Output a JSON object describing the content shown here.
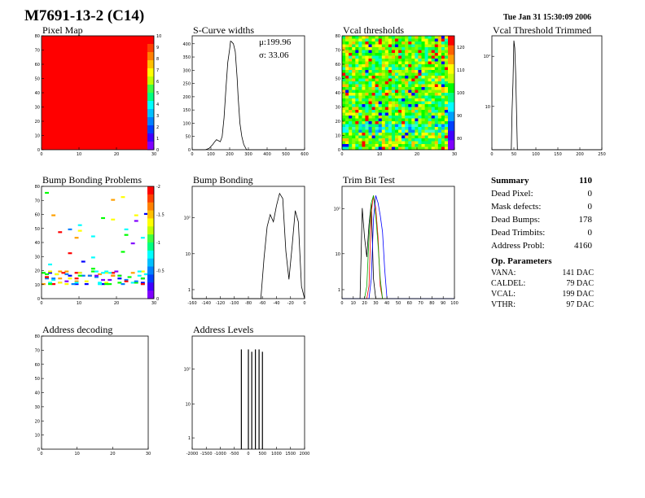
{
  "header": {
    "title": "M7691-13-2 (C14)",
    "date": "Tue Jan 31 15:30:09 2006"
  },
  "panels": {
    "pixel_map": "Pixel Map",
    "scurve": "S-Curve widths",
    "vcal": "Vcal thresholds",
    "vcal_trim": "Vcal Threshold Trimmed",
    "bump_problems": "Bump Bonding Problems",
    "bump": "Bump Bonding",
    "trim_bit": "Trim Bit Test",
    "addr_dec": "Address decoding",
    "addr_lev": "Address Levels"
  },
  "scurve_stats": {
    "mean": "μ:199.96",
    "sigma": "σ: 33.06"
  },
  "summary": {
    "title": "Summary",
    "total": "110",
    "rows": [
      {
        "label": "Dead Pixel:",
        "value": "0"
      },
      {
        "label": "Mask defects:",
        "value": "0"
      },
      {
        "label": "Dead Bumps:",
        "value": "178"
      },
      {
        "label": "Dead Trimbits:",
        "value": "0"
      },
      {
        "label": "Address Probl:",
        "value": "4160"
      }
    ]
  },
  "op_params": {
    "title": "Op. Parameters",
    "rows": [
      {
        "label": "VANA:",
        "value": "141 DAC"
      },
      {
        "label": "CALDEL:",
        "value": "79 DAC"
      },
      {
        "label": "VCAL:",
        "value": "199 DAC"
      },
      {
        "label": "VTHR:",
        "value": "97 DAC"
      }
    ]
  },
  "colors": {
    "red": "#ff0000",
    "hist_line": "#000000"
  },
  "chart_data": [
    {
      "id": "pixel_map",
      "type": "heatmap",
      "xlim": [
        0,
        32
      ],
      "ylim": [
        0,
        80
      ],
      "xticks": [
        "0",
        "10",
        "20",
        "30"
      ],
      "yticks": [
        "0",
        "10",
        "20",
        "30",
        "40",
        "50",
        "60",
        "70",
        "80"
      ],
      "zticks": [
        "0",
        "1",
        "2",
        "3",
        "4",
        "5",
        "6",
        "7",
        "8",
        "9",
        "10"
      ],
      "uniform_value": 10
    },
    {
      "id": "scurve",
      "type": "line",
      "xlim": [
        0,
        600
      ],
      "ylim": [
        0,
        430
      ],
      "xticks": [
        "0",
        "100",
        "200",
        "300",
        "400",
        "500",
        "600"
      ],
      "yticks": [
        "0",
        "50",
        "100",
        "150",
        "200",
        "250",
        "300",
        "350",
        "400"
      ],
      "x": [
        0,
        70,
        90,
        110,
        120,
        130,
        150,
        160,
        170,
        180,
        190,
        200,
        205,
        210,
        220,
        230,
        240,
        245,
        255,
        265,
        275,
        290,
        600
      ],
      "y": [
        0,
        0,
        5,
        20,
        30,
        38,
        30,
        50,
        120,
        230,
        330,
        380,
        410,
        408,
        400,
        370,
        270,
        200,
        100,
        50,
        20,
        0,
        0
      ]
    },
    {
      "id": "vcal",
      "type": "heatmap",
      "xlim": [
        0,
        32
      ],
      "ylim": [
        0,
        80
      ],
      "xticks": [
        "0",
        "10",
        "20",
        "30"
      ],
      "yticks": [
        "0",
        "10",
        "20",
        "30",
        "40",
        "50",
        "60",
        "70",
        "80"
      ],
      "zticks": [
        "80",
        "90",
        "100",
        "110",
        "120"
      ],
      "zlim": [
        75,
        125
      ]
    },
    {
      "id": "vcal_trim",
      "type": "line",
      "log_y": true,
      "xlim": [
        0,
        250
      ],
      "xticks": [
        "0",
        "50",
        "100",
        "150",
        "200",
        "250"
      ],
      "yticks": [
        "10",
        "10²"
      ],
      "x": [
        0,
        44,
        46,
        48,
        50,
        52,
        54,
        56,
        58,
        250
      ],
      "y": [
        0,
        0,
        20,
        150,
        3500,
        2000,
        300,
        20,
        0,
        0
      ]
    },
    {
      "id": "bump_problems",
      "type": "heatmap",
      "xlim": [
        0,
        32
      ],
      "ylim": [
        0,
        80
      ],
      "xticks": [
        "0",
        "10",
        "20",
        "30"
      ],
      "yticks": [
        "0",
        "10",
        "20",
        "30",
        "40",
        "50",
        "60",
        "70",
        "80"
      ],
      "zticks": [
        "0",
        "-0.5",
        "-1",
        "-1.5",
        "-2"
      ]
    },
    {
      "id": "bump",
      "type": "line",
      "log_y": true,
      "xlim": [
        -170,
        10
      ],
      "xticks": [
        "-160",
        "-140",
        "-120",
        "-100",
        "-80",
        "-60",
        "-40",
        "-20",
        "0"
      ],
      "yticks": [
        "1",
        "10",
        "10²"
      ],
      "x": [
        -170,
        -160,
        -155,
        -150,
        -80,
        -60,
        -55,
        -50,
        -45,
        -40,
        -35,
        -30,
        -25,
        -20,
        -15,
        -10,
        -5,
        0,
        5,
        10
      ],
      "y": [
        1,
        1,
        1,
        0.5,
        0.5,
        1,
        10,
        60,
        120,
        80,
        200,
        400,
        300,
        15,
        3,
        20,
        150,
        80,
        2,
        1
      ]
    },
    {
      "id": "trim_bit",
      "type": "line",
      "log_y": true,
      "xlim": [
        0,
        100
      ],
      "xticks": [
        "0",
        "10",
        "20",
        "30",
        "40",
        "50",
        "60",
        "70",
        "80",
        "90",
        "100"
      ],
      "yticks": [
        "1",
        "10",
        "10²"
      ],
      "series": [
        {
          "color": "#000000",
          "x": [
            0,
            16,
            18,
            20,
            22,
            24,
            26,
            28,
            30,
            32,
            100
          ],
          "y": [
            0,
            0,
            150,
            30,
            10,
            60,
            200,
            3,
            1,
            0,
            0
          ]
        },
        {
          "color": "#ff0000",
          "x": [
            0,
            22,
            24,
            26,
            28,
            30,
            32,
            34,
            36,
            100
          ],
          "y": [
            0,
            0,
            2,
            120,
            300,
            150,
            30,
            2,
            0,
            0
          ]
        },
        {
          "color": "#00aa00",
          "x": [
            0,
            20,
            22,
            24,
            26,
            28,
            30,
            32,
            34,
            36,
            100
          ],
          "y": [
            0,
            0,
            2,
            30,
            200,
            300,
            100,
            20,
            3,
            0,
            0
          ]
        },
        {
          "color": "#0000ff",
          "x": [
            0,
            24,
            26,
            28,
            30,
            32,
            34,
            36,
            38,
            40,
            100
          ],
          "y": [
            0,
            0,
            3,
            80,
            300,
            200,
            100,
            40,
            5,
            0,
            0
          ]
        }
      ]
    },
    {
      "id": "addr_dec",
      "type": "heatmap",
      "xlim": [
        0,
        32
      ],
      "ylim": [
        0,
        80
      ],
      "xticks": [
        "0",
        "10",
        "20",
        "30"
      ],
      "yticks": [
        "0",
        "10",
        "20",
        "30",
        "40",
        "50",
        "60",
        "70",
        "80"
      ]
    },
    {
      "id": "addr_lev",
      "type": "bar",
      "log_y": true,
      "xlim": [
        -2000,
        2000
      ],
      "xticks": [
        "-2000",
        "-1500",
        "-1000",
        "-500",
        "0",
        "500",
        "1000",
        "1500",
        "2000"
      ],
      "yticks": [
        "1",
        "10",
        "10²"
      ],
      "x": [
        -250,
        0,
        120,
        250,
        380,
        500
      ],
      "y": [
        700,
        700,
        600,
        700,
        700,
        600
      ]
    }
  ]
}
